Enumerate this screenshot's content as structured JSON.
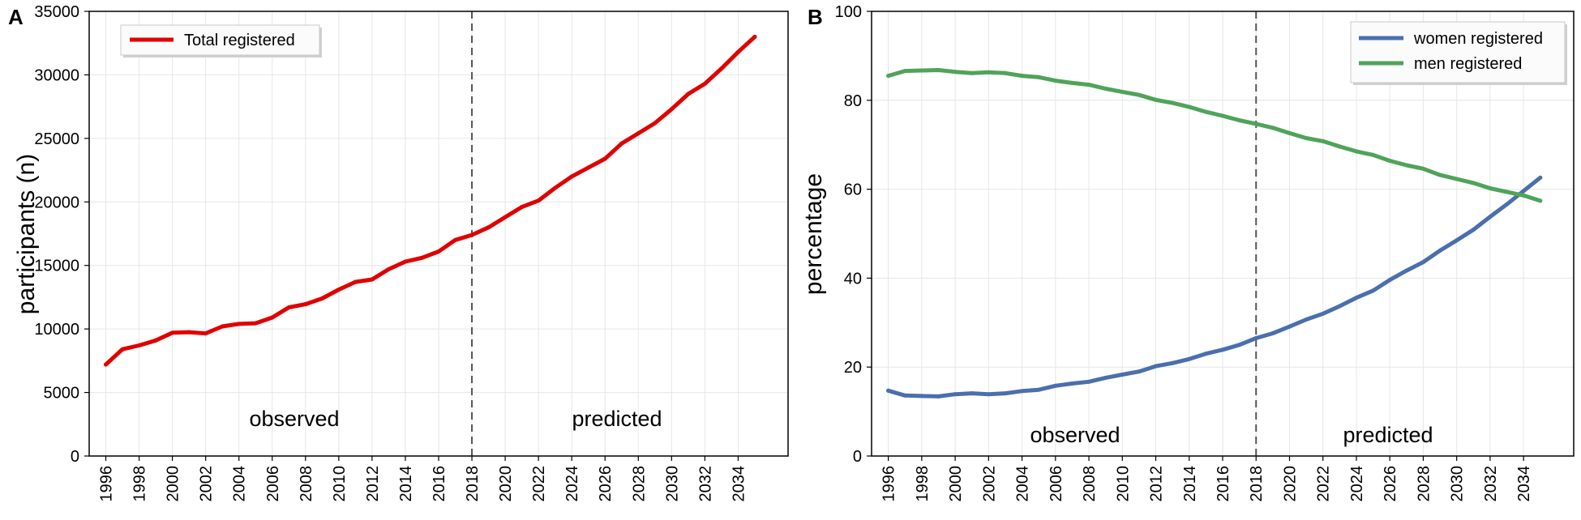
{
  "chart_data": [
    {
      "panel": "A",
      "type": "line",
      "ylabel": "participants (n)",
      "xlabel": "",
      "x": [
        1996,
        1997,
        1998,
        1999,
        2000,
        2001,
        2002,
        2003,
        2004,
        2005,
        2006,
        2007,
        2008,
        2009,
        2010,
        2011,
        2012,
        2013,
        2014,
        2015,
        2016,
        2017,
        2018,
        2019,
        2020,
        2021,
        2022,
        2023,
        2024,
        2025,
        2026,
        2027,
        2028,
        2029,
        2030,
        2031,
        2032,
        2033,
        2034,
        2035
      ],
      "xticks": [
        "1996",
        "1998",
        "2000",
        "2002",
        "2004",
        "2006",
        "2008",
        "2010",
        "2012",
        "2014",
        "2016",
        "2018",
        "2020",
        "2022",
        "2024",
        "2026",
        "2028",
        "2030",
        "2032",
        "2034"
      ],
      "xlim": [
        1995,
        2037
      ],
      "ylim": [
        0,
        35000
      ],
      "yticks": [
        "0",
        "5000",
        "10000",
        "15000",
        "20000",
        "25000",
        "30000",
        "35000"
      ],
      "divider_x": 2018,
      "region_labels": [
        "observed",
        "predicted"
      ],
      "legend_position": "upper-left",
      "series": [
        {
          "name": "Total registered",
          "color": "#e00000",
          "values": [
            7200,
            8400,
            8700,
            9100,
            9700,
            9750,
            9650,
            10200,
            10400,
            10450,
            10900,
            11700,
            11950,
            12400,
            13100,
            13700,
            13900,
            14700,
            15300,
            15600,
            16100,
            17000,
            17400,
            18000,
            18800,
            19600,
            20100,
            21100,
            22000,
            22700,
            23400,
            24600,
            25400,
            26200,
            27300,
            28500,
            29300,
            30500,
            31800,
            33000
          ]
        }
      ]
    },
    {
      "panel": "B",
      "type": "line",
      "ylabel": "percentage",
      "xlabel": "",
      "x": [
        1996,
        1997,
        1998,
        1999,
        2000,
        2001,
        2002,
        2003,
        2004,
        2005,
        2006,
        2007,
        2008,
        2009,
        2010,
        2011,
        2012,
        2013,
        2014,
        2015,
        2016,
        2017,
        2018,
        2019,
        2020,
        2021,
        2022,
        2023,
        2024,
        2025,
        2026,
        2027,
        2028,
        2029,
        2030,
        2031,
        2032,
        2033,
        2034,
        2035
      ],
      "xticks": [
        "1996",
        "1998",
        "2000",
        "2002",
        "2004",
        "2006",
        "2008",
        "2010",
        "2012",
        "2014",
        "2016",
        "2018",
        "2020",
        "2022",
        "2024",
        "2026",
        "2028",
        "2030",
        "2032",
        "2034"
      ],
      "xlim": [
        1995,
        2037
      ],
      "ylim": [
        0,
        100
      ],
      "yticks": [
        "0",
        "20",
        "40",
        "60",
        "80",
        "100"
      ],
      "divider_x": 2018,
      "region_labels": [
        "observed",
        "predicted"
      ],
      "legend_position": "upper-right",
      "series": [
        {
          "name": "women registered",
          "color": "#4a6fae",
          "values": [
            14.7,
            13.6,
            13.5,
            13.4,
            13.9,
            14.1,
            13.9,
            14.1,
            14.6,
            14.9,
            15.8,
            16.3,
            16.7,
            17.6,
            18.3,
            19.0,
            20.2,
            20.9,
            21.8,
            23.0,
            23.9,
            25.0,
            26.5,
            27.6,
            29.1,
            30.7,
            32.0,
            33.7,
            35.6,
            37.2,
            39.6,
            41.7,
            43.6,
            46.2,
            48.5,
            50.9,
            53.8,
            56.6,
            59.6,
            62.6
          ]
        },
        {
          "name": "men registered",
          "color": "#4fa35a",
          "values": [
            85.5,
            86.6,
            86.7,
            86.8,
            86.4,
            86.1,
            86.3,
            86.1,
            85.5,
            85.2,
            84.4,
            83.9,
            83.5,
            82.6,
            81.9,
            81.2,
            80.1,
            79.4,
            78.5,
            77.4,
            76.5,
            75.5,
            74.7,
            73.8,
            72.6,
            71.5,
            70.8,
            69.6,
            68.5,
            67.7,
            66.4,
            65.4,
            64.6,
            63.2,
            62.3,
            61.4,
            60.2,
            59.4,
            58.6,
            57.4
          ]
        }
      ]
    }
  ]
}
